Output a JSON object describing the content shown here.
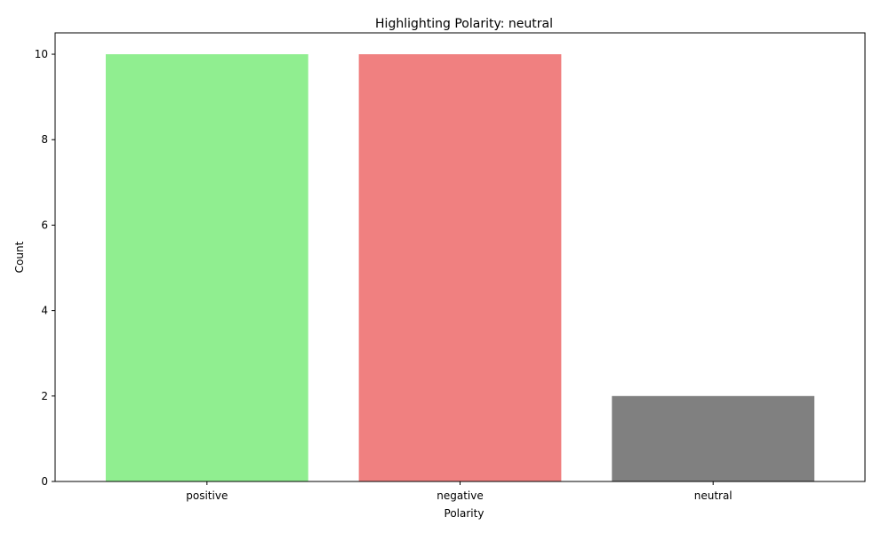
{
  "chart_data": {
    "type": "bar",
    "title": "Highlighting Polarity: neutral",
    "xlabel": "Polarity",
    "ylabel": "Count",
    "categories": [
      "positive",
      "negative",
      "neutral"
    ],
    "values": [
      10,
      10,
      2
    ],
    "colors": [
      "#90ee90",
      "#f08080",
      "#808080"
    ],
    "ylim": [
      0,
      10.5
    ],
    "yticks": [
      0,
      2,
      4,
      6,
      8,
      10
    ],
    "grid": false,
    "legend": "none"
  }
}
